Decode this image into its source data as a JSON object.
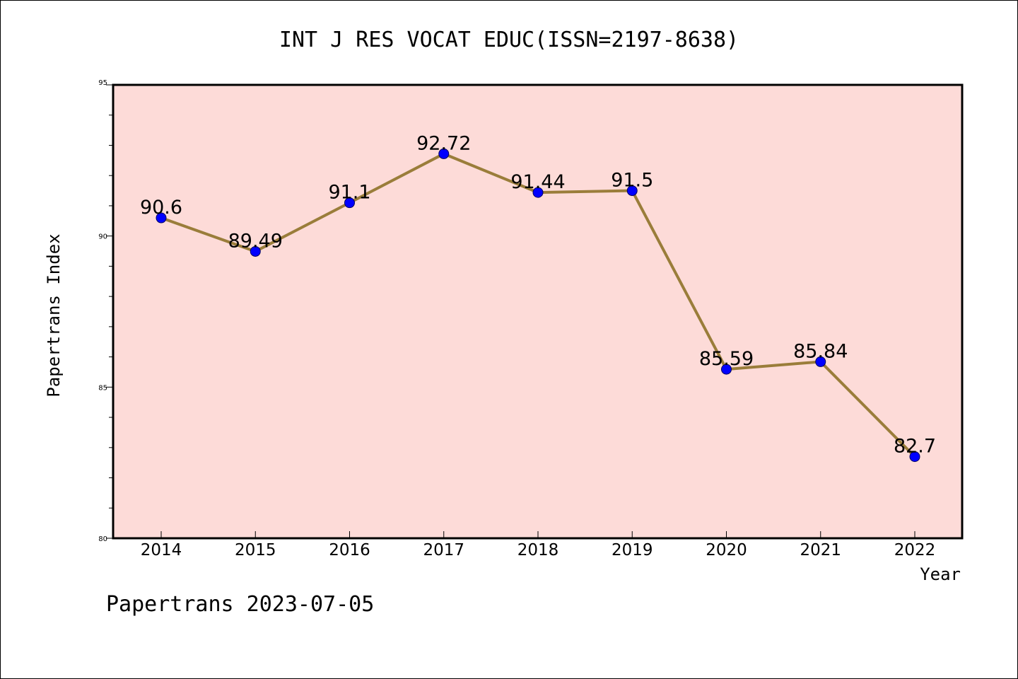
{
  "footer": "Papertrans 2023-07-05",
  "chart_data": {
    "type": "line",
    "title": "INT J RES VOCAT EDUC(ISSN=2197-8638)",
    "xlabel": "Year",
    "ylabel": "Papertrans Index",
    "categories": [
      "2014",
      "2015",
      "2016",
      "2017",
      "2018",
      "2019",
      "2020",
      "2021",
      "2022"
    ],
    "values": [
      90.6,
      89.49,
      91.1,
      92.72,
      91.44,
      91.5,
      85.59,
      85.84,
      82.7
    ],
    "data_labels": [
      "90.6",
      "89.49",
      "91.1",
      "92.72",
      "91.44",
      "91.5",
      "85.59",
      "85.84",
      "82.7"
    ],
    "ylim": [
      80,
      95
    ],
    "yticks": [
      80,
      85,
      90,
      95
    ],
    "grid": false,
    "colors": {
      "plot_background": "#fddbd8",
      "line": "#9a7d3a",
      "marker": "#0000ff"
    }
  }
}
